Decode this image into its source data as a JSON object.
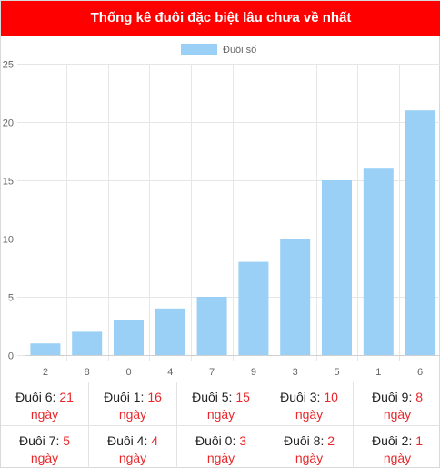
{
  "header": {
    "title": "Thống kê đuôi đặc biệt lâu chưa về nhất"
  },
  "colors": {
    "header_bg": "#ff0000",
    "bar_fill": "#9ad0f5",
    "value_text": "#e8282b",
    "grid": "#e6e6e6",
    "tick_text": "#666666"
  },
  "chart_data": {
    "type": "bar",
    "title": "",
    "xlabel": "",
    "ylabel": "",
    "categories": [
      "2",
      "8",
      "0",
      "4",
      "7",
      "9",
      "3",
      "5",
      "1",
      "6"
    ],
    "series": [
      {
        "name": "Đuôi số",
        "values": [
          1,
          2,
          3,
          4,
          5,
          8,
          10,
          15,
          16,
          21
        ]
      }
    ],
    "ylim": [
      0,
      25
    ],
    "yticks": [
      0,
      5,
      10,
      15,
      20,
      25
    ],
    "grid": true,
    "legend": "top-center"
  },
  "stats": {
    "unit": "ngày",
    "rows": [
      [
        {
          "label": "Đuôi 6:",
          "value": "21"
        },
        {
          "label": "Đuôi 1:",
          "value": "16"
        },
        {
          "label": "Đuôi 5:",
          "value": "15"
        },
        {
          "label": "Đuôi 3:",
          "value": "10"
        },
        {
          "label": "Đuôi 9:",
          "value": "8"
        }
      ],
      [
        {
          "label": "Đuôi 7:",
          "value": "5"
        },
        {
          "label": "Đuôi 4:",
          "value": "4"
        },
        {
          "label": "Đuôi 0:",
          "value": "3"
        },
        {
          "label": "Đuôi 8:",
          "value": "2"
        },
        {
          "label": "Đuôi 2:",
          "value": "1"
        }
      ]
    ]
  }
}
